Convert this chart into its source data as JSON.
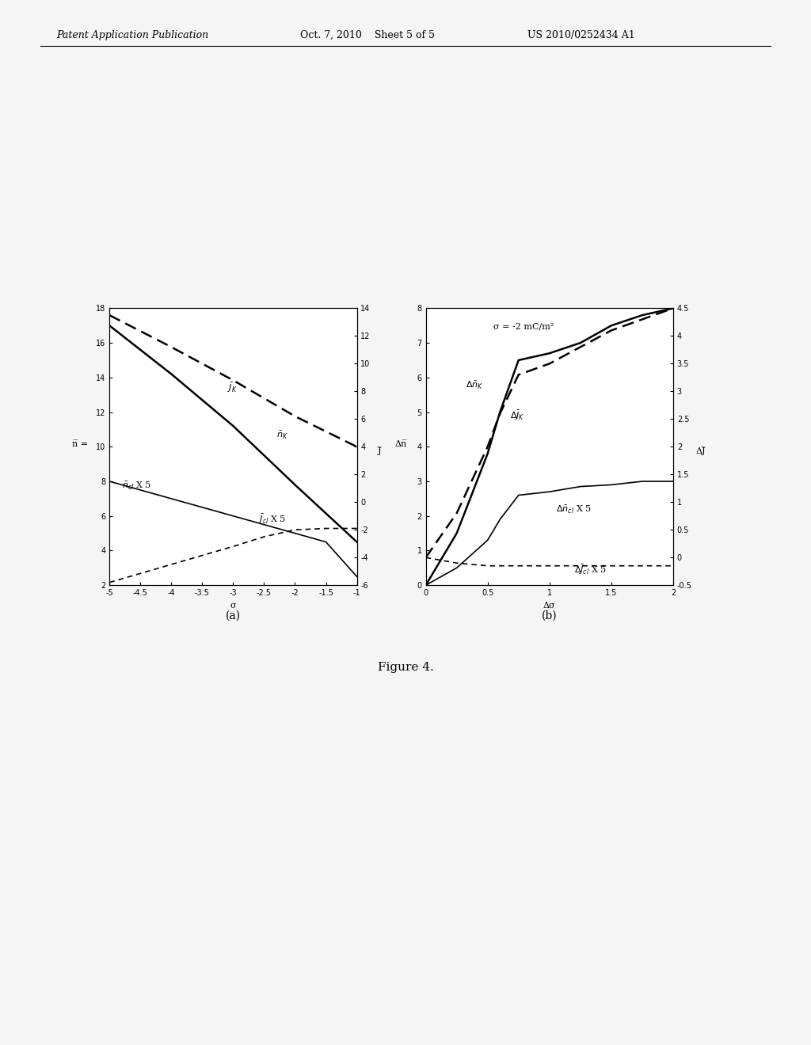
{
  "fig_width": 10.24,
  "fig_height": 13.2,
  "background_color": "#f5f5f5",
  "header_left": "Patent Application Publication",
  "header_center": "Oct. 7, 2010    Sheet 5 of 5",
  "header_right": "US 2010/0252434 A1",
  "caption": "Figure 4.",
  "plot_a": {
    "xlabel": "σ",
    "ylabel_left": "n̅ =",
    "ylabel_right": "J̅",
    "xlim": [
      -5,
      -1
    ],
    "ylim_left": [
      2,
      18
    ],
    "ylim_right": [
      -6,
      14
    ],
    "xticks": [
      -5,
      -4.5,
      -4,
      -3.5,
      -3,
      -2.5,
      -2,
      -1.5,
      -1
    ],
    "yticks_left": [
      2,
      4,
      6,
      8,
      10,
      12,
      14,
      16,
      18
    ],
    "yticks_right": [
      -6,
      -4,
      -2,
      0,
      2,
      4,
      6,
      8,
      10,
      12,
      14
    ],
    "n_K_x": [
      -5,
      -4,
      -3,
      -2,
      -1
    ],
    "n_K_y": [
      17.0,
      14.2,
      11.2,
      7.8,
      4.5
    ],
    "J_K_x": [
      -5,
      -4,
      -3,
      -2,
      -1
    ],
    "J_K_y": [
      13.5,
      11.2,
      8.8,
      6.2,
      4.0
    ],
    "n_cl_x": [
      -5,
      -4,
      -3,
      -2,
      -1.5,
      -1
    ],
    "n_cl_y": [
      8.0,
      7.0,
      6.0,
      5.0,
      4.5,
      2.5
    ],
    "J_cl_x": [
      -5,
      -4,
      -3,
      -2.5,
      -2,
      -1.5,
      -1
    ],
    "J_cl_y": [
      -5.8,
      -4.5,
      -3.2,
      -2.5,
      -2.0,
      -1.9,
      -1.9
    ],
    "label_n_K": "$\\bar{n}_{K}$",
    "label_J_K": "$\\bar{J}_{K}$",
    "label_n_cl": "$\\bar{n}_{cl}$ X 5",
    "label_J_cl": "$\\bar{J}_{cl}$ X 5"
  },
  "plot_b": {
    "xlabel": "Δσ",
    "ylabel_left": "Δn̅",
    "ylabel_right": "ΔJ̅",
    "xlim": [
      0,
      2
    ],
    "ylim_left": [
      0,
      8
    ],
    "ylim_right": [
      -0.5,
      4.5
    ],
    "xticks": [
      0,
      0.5,
      1,
      1.5,
      2
    ],
    "yticks_left": [
      0,
      1,
      2,
      3,
      4,
      5,
      6,
      7,
      8
    ],
    "yticks_right": [
      -0.5,
      0,
      0.5,
      1,
      1.5,
      2,
      2.5,
      3,
      3.5,
      4,
      4.5
    ],
    "annotation": "σ = -2 mC/m²",
    "dn_K_x": [
      0,
      0.25,
      0.5,
      0.6,
      0.75,
      1.0,
      1.25,
      1.5,
      1.75,
      2.0
    ],
    "dn_K_y": [
      0,
      1.5,
      3.8,
      5.0,
      6.5,
      6.7,
      7.0,
      7.5,
      7.8,
      8.0
    ],
    "dJ_K_x": [
      0,
      0.25,
      0.5,
      0.6,
      0.75,
      1.0,
      1.25,
      1.5,
      1.75,
      2.0
    ],
    "dJ_K_y": [
      0,
      0.8,
      2.0,
      2.6,
      3.3,
      3.5,
      3.8,
      4.1,
      4.3,
      4.5
    ],
    "dn_cl_x": [
      0,
      0.25,
      0.5,
      0.6,
      0.75,
      1.0,
      1.25,
      1.5,
      1.75,
      2.0
    ],
    "dn_cl_y": [
      0,
      0.5,
      1.3,
      1.9,
      2.6,
      2.7,
      2.85,
      2.9,
      3.0,
      3.0
    ],
    "dJ_cl_x": [
      0,
      0.25,
      0.5,
      0.75,
      1.0,
      1.25,
      1.5,
      1.75,
      2.0
    ],
    "dJ_cl_y": [
      0,
      -0.1,
      -0.15,
      -0.15,
      -0.15,
      -0.15,
      -0.15,
      -0.15,
      -0.15
    ],
    "label_dn_K": "$\\Delta\\bar{n}_{K}$",
    "label_dJ_K": "$\\Delta\\bar{J}_{K}$",
    "label_dn_cl": "$\\Delta\\bar{n}_{cl}$ X 5",
    "label_dJ_cl": "$\\Delta\\bar{J}_{cl}$ X 5"
  }
}
